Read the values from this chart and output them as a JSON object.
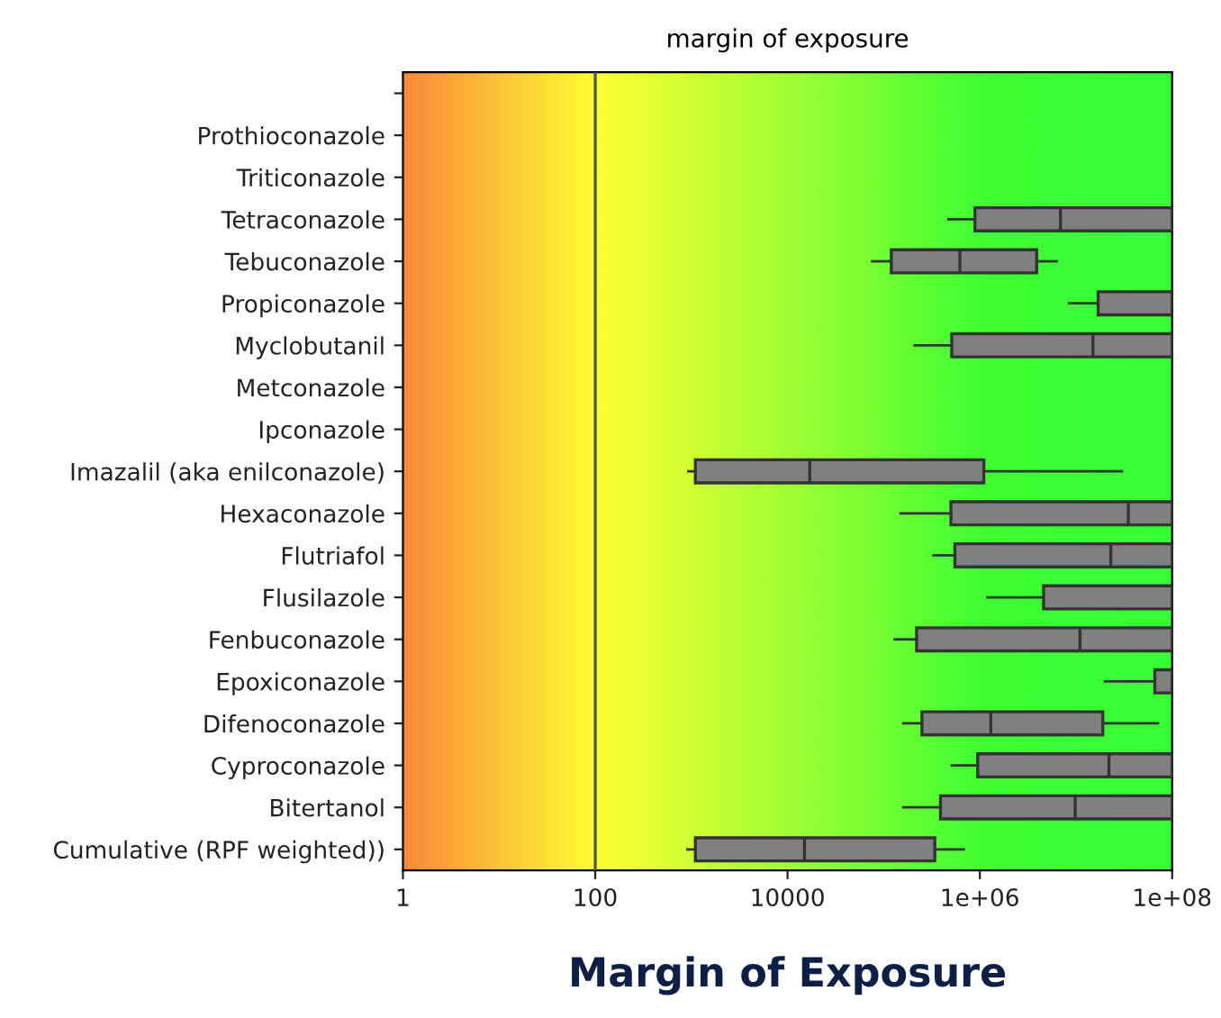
{
  "chart_data": {
    "type": "box",
    "title": "margin of exposure",
    "xlabel": "Margin of Exposure",
    "orientation": "horizontal",
    "log": "x",
    "categories": [
      null,
      "Prothioconazole",
      "Triticonazole",
      "Tetraconazole",
      "Tebuconazole",
      "Propiconazole",
      "Myclobutanil",
      "Metconazole",
      "Ipconazole",
      "Imazalil (aka enilconazole)",
      "Hexaconazole",
      "Flutriafol",
      "Flusilazole",
      "Fenbuconazole",
      "Epoxiconazole",
      "Difenoconazole",
      "Cyproconazole",
      "Bitertanol",
      "Cumulative (RPF weighted))"
    ],
    "boxes": [
      null,
      null,
      null,
      {
        "low": 470000,
        "q1": 890000,
        "median": 6900000,
        "q3": 100000000,
        "high": 100000000
      },
      {
        "low": 76000,
        "q1": 120000,
        "median": 620000,
        "q3": 3900000,
        "high": 6300000
      },
      {
        "low": 8500000,
        "q1": 17000000,
        "median": 100000000,
        "q3": 100000000,
        "high": 100000000
      },
      {
        "low": 210000,
        "q1": 510000,
        "median": 15000000,
        "q3": 100000000,
        "high": 100000000
      },
      null,
      null,
      {
        "low": 930,
        "q1": 1100,
        "median": 17000,
        "q3": 1100000,
        "high": 30000000
      },
      {
        "low": 150000,
        "q1": 500000,
        "median": 35000000,
        "q3": 100000000,
        "high": 100000000
      },
      {
        "low": 330000,
        "q1": 550000,
        "median": 23000000,
        "q3": 100000000,
        "high": 100000000
      },
      {
        "low": 1200000,
        "q1": 4600000,
        "median": 100000000,
        "q3": 100000000,
        "high": 100000000
      },
      {
        "low": 130000,
        "q1": 220000,
        "median": 11000000,
        "q3": 100000000,
        "high": 100000000
      },
      {
        "low": 20000000,
        "q1": 66000000,
        "median": 100000000,
        "q3": 100000000,
        "high": 100000000
      },
      {
        "low": 160000,
        "q1": 250000,
        "median": 1300000,
        "q3": 19000000,
        "high": 71000000
      },
      {
        "low": 510000,
        "q1": 950000,
        "median": 22000000,
        "q3": 100000000,
        "high": 100000000
      },
      {
        "low": 160000,
        "q1": 390000,
        "median": 9800000,
        "q3": 100000000,
        "high": 100000000
      },
      {
        "low": 910,
        "q1": 1100,
        "median": 15000,
        "q3": 340000,
        "high": 680000
      }
    ],
    "color": "#808080",
    "xlim": [
      1,
      100000000
    ],
    "xticks": [
      1,
      100,
      10000,
      {
        "value": 1000000,
        "label": "1e+06"
      },
      {
        "value": 100000000,
        "label": "1e+08"
      }
    ],
    "ref_lines": [
      {
        "axis": "x",
        "value": 100,
        "color": "#555555"
      }
    ],
    "grid": false,
    "legend": false
  }
}
